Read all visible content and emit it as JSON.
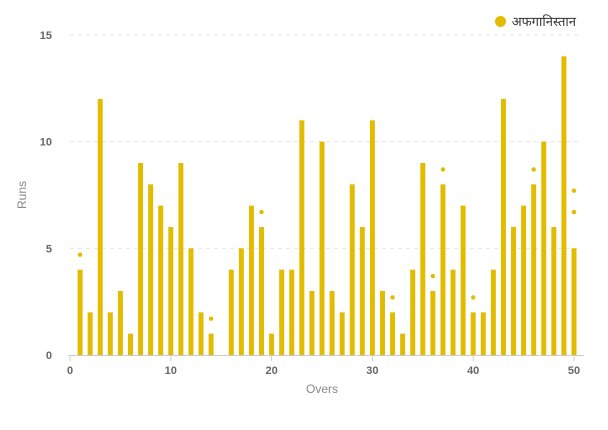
{
  "chart_data": {
    "type": "bar",
    "title": "",
    "xlabel": "Overs",
    "ylabel": "Runs",
    "xlim": [
      0,
      50
    ],
    "ylim": [
      0,
      15
    ],
    "x_ticks": [
      "0",
      "10",
      "20",
      "30",
      "40",
      "50"
    ],
    "y_ticks": [
      "0",
      "5",
      "10",
      "15"
    ],
    "grid": "horizontal dashed",
    "legend_position": "top-right",
    "series": [
      {
        "name": "अफगानिस्तान",
        "color": "#e2bc00",
        "overs": [
          1,
          2,
          3,
          4,
          5,
          6,
          7,
          8,
          9,
          10,
          11,
          12,
          13,
          14,
          15,
          16,
          17,
          18,
          19,
          20,
          21,
          22,
          23,
          24,
          25,
          26,
          27,
          28,
          29,
          30,
          31,
          32,
          33,
          34,
          35,
          36,
          37,
          38,
          39,
          40,
          41,
          42,
          43,
          44,
          45,
          46,
          47,
          48,
          49,
          50
        ],
        "values": [
          4,
          2,
          12,
          2,
          3,
          1,
          9,
          8,
          7,
          6,
          9,
          5,
          2,
          1,
          0,
          4,
          5,
          7,
          6,
          1,
          4,
          4,
          11,
          3,
          10,
          3,
          2,
          8,
          6,
          11,
          3,
          2,
          1,
          4,
          9,
          3,
          8,
          4,
          7,
          2,
          2,
          4,
          12,
          6,
          7,
          8,
          10,
          6,
          14,
          5
        ]
      }
    ],
    "wicket_markers": [
      {
        "over": 1,
        "y": 4.7
      },
      {
        "over": 14,
        "y": 1.7
      },
      {
        "over": 19,
        "y": 6.7
      },
      {
        "over": 32,
        "y": 2.7
      },
      {
        "over": 36,
        "y": 3.7
      },
      {
        "over": 37,
        "y": 8.7
      },
      {
        "over": 40,
        "y": 2.7
      },
      {
        "over": 46,
        "y": 8.7
      },
      {
        "over": 50,
        "y": 6.7
      },
      {
        "over": 50,
        "y": 7.7
      }
    ]
  }
}
